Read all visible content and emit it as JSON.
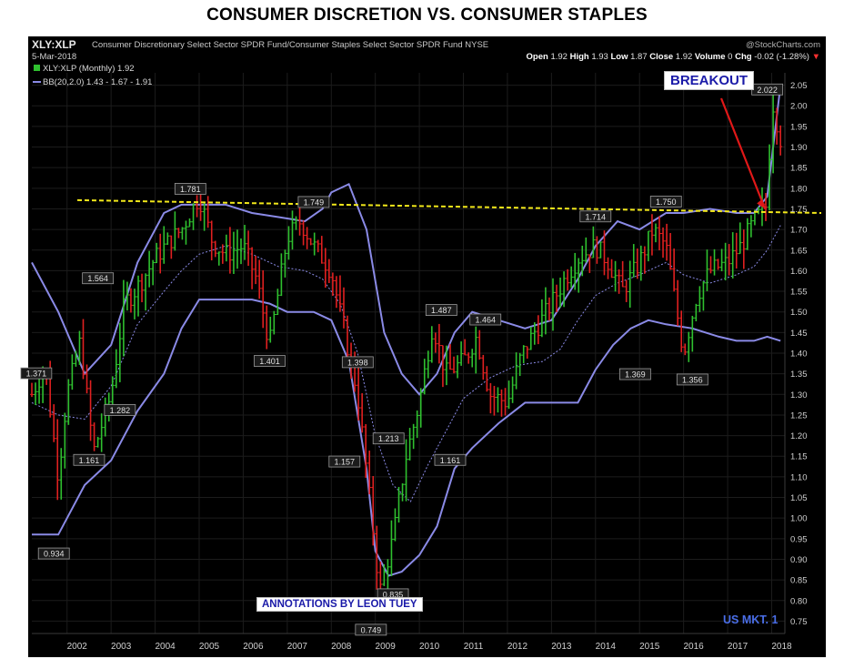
{
  "page": {
    "title": "CONSUMER DISCRETION VS. CONSUMER STAPLES"
  },
  "header": {
    "ticker": "XLY:XLP",
    "description": "Consumer Discretionary Select Sector SPDR Fund/Consumer Staples Select Sector SPDR Fund NYSE",
    "credit": "@StockCharts.com",
    "date": "5-Mar-2018",
    "open_label": "Open",
    "open": "1.92",
    "high_label": "High",
    "high": "1.93",
    "low_label": "Low",
    "low": "1.87",
    "close_label": "Close",
    "close": "1.92",
    "volume_label": "Volume",
    "volume": "0",
    "chg_label": "Chg",
    "chg": "-0.02 (-1.28%)"
  },
  "legend": {
    "series_main": "XLY:XLP (Monthly) 1.92",
    "series_bb": "BB(20,2.0) 1.43 - 1.67 - 1.91"
  },
  "annotations": {
    "breakout": "BREAKOUT",
    "credit": "ANNOTATIONS BY LEON TUEY",
    "market": "US MKT. 1"
  },
  "colors": {
    "background": "#000000",
    "up_bar": "#2fc02f",
    "down_bar": "#e02020",
    "bollinger": "#8a8ae6",
    "middle_band": "#8a8ae6",
    "resistance": "#f2e81a",
    "arrow": "#e01818",
    "annotation_text": "#1a1aa8",
    "market_text": "#4a6ee8"
  },
  "chart_data": {
    "type": "line",
    "title": "CONSUMER DISCRETION VS. CONSUMER STAPLES",
    "xlabel": "",
    "ylabel": "",
    "x_ticks": [
      "2002",
      "2003",
      "2004",
      "2005",
      "2006",
      "2007",
      "2008",
      "2009",
      "2010",
      "2011",
      "2012",
      "2013",
      "2014",
      "2015",
      "2016",
      "2017",
      "2018"
    ],
    "y_ticks": [
      "0.75",
      "0.80",
      "0.85",
      "0.90",
      "0.95",
      "1.00",
      "1.05",
      "1.10",
      "1.15",
      "1.20",
      "1.25",
      "1.30",
      "1.35",
      "1.40",
      "1.45",
      "1.50",
      "1.55",
      "1.60",
      "1.65",
      "1.70",
      "1.75",
      "1.80",
      "1.85",
      "1.90",
      "1.95",
      "2.00",
      "2.05"
    ],
    "ylim": [
      0.72,
      2.08
    ],
    "xlim": [
      2001.2,
      2018.3
    ],
    "grid": true,
    "y_axis_side": "right",
    "series": [
      {
        "name": "XLY:XLP (Monthly)",
        "style": "ohlc-bars",
        "x": [
          2001.2,
          2001.5,
          2001.8,
          2002.0,
          2002.3,
          2002.6,
          2003.0,
          2003.3,
          2003.6,
          2004.0,
          2004.3,
          2004.6,
          2005.0,
          2005.3,
          2005.6,
          2006.0,
          2006.3,
          2006.6,
          2007.0,
          2007.3,
          2007.6,
          2008.0,
          2008.3,
          2008.6,
          2008.9,
          2009.1,
          2009.4,
          2009.7,
          2010.0,
          2010.3,
          2010.6,
          2011.0,
          2011.3,
          2011.6,
          2012.0,
          2012.3,
          2012.6,
          2013.0,
          2013.3,
          2013.6,
          2014.0,
          2014.3,
          2014.6,
          2015.0,
          2015.3,
          2015.6,
          2016.0,
          2016.3,
          2016.6,
          2017.0,
          2017.3,
          2017.6,
          2017.9,
          2018.0,
          2018.2
        ],
        "y": [
          1.3,
          1.37,
          1.1,
          1.3,
          1.43,
          1.16,
          1.3,
          1.52,
          1.56,
          1.63,
          1.67,
          1.7,
          1.78,
          1.67,
          1.64,
          1.66,
          1.58,
          1.42,
          1.68,
          1.72,
          1.66,
          1.6,
          1.45,
          1.3,
          1.02,
          0.82,
          0.95,
          1.15,
          1.28,
          1.47,
          1.35,
          1.38,
          1.44,
          1.3,
          1.28,
          1.39,
          1.45,
          1.52,
          1.58,
          1.63,
          1.66,
          1.62,
          1.55,
          1.62,
          1.7,
          1.66,
          1.4,
          1.54,
          1.6,
          1.62,
          1.66,
          1.72,
          1.76,
          2.02,
          1.92
        ]
      },
      {
        "name": "BB(20,2.0)",
        "style": "upper-band",
        "x": [
          2001.2,
          2001.8,
          2002.4,
          2003.0,
          2003.6,
          2004.2,
          2004.6,
          2005.0,
          2005.6,
          2006.2,
          2006.8,
          2007.4,
          2007.8,
          2008.0,
          2008.4,
          2008.8,
          2009.2,
          2009.6,
          2010.0,
          2010.4,
          2010.8,
          2011.2,
          2011.8,
          2012.4,
          2013.0,
          2013.6,
          2014.0,
          2014.5,
          2015.0,
          2015.6,
          2016.0,
          2016.6,
          2017.2,
          2017.6,
          2017.9,
          2018.2
        ],
        "y": [
          1.62,
          1.5,
          1.35,
          1.42,
          1.62,
          1.74,
          1.76,
          1.76,
          1.76,
          1.74,
          1.73,
          1.72,
          1.75,
          1.79,
          1.81,
          1.7,
          1.45,
          1.35,
          1.3,
          1.35,
          1.45,
          1.5,
          1.48,
          1.46,
          1.48,
          1.58,
          1.66,
          1.72,
          1.7,
          1.74,
          1.74,
          1.75,
          1.74,
          1.74,
          1.78,
          2.05
        ]
      },
      {
        "name": "BB(20,2.0)",
        "style": "middle-band",
        "x": [
          2001.2,
          2001.8,
          2002.4,
          2003.0,
          2003.6,
          2004.2,
          2004.6,
          2005.0,
          2005.6,
          2006.2,
          2006.8,
          2007.4,
          2007.8,
          2008.2,
          2008.6,
          2009.0,
          2009.4,
          2009.8,
          2010.2,
          2010.6,
          2011.0,
          2011.6,
          2012.2,
          2012.8,
          2013.2,
          2013.6,
          2014.0,
          2014.5,
          2015.0,
          2015.6,
          2016.0,
          2016.6,
          2017.2,
          2017.6,
          2017.9,
          2018.2
        ],
        "y": [
          1.28,
          1.25,
          1.24,
          1.32,
          1.47,
          1.55,
          1.6,
          1.64,
          1.66,
          1.64,
          1.61,
          1.6,
          1.58,
          1.52,
          1.4,
          1.2,
          1.08,
          1.04,
          1.13,
          1.21,
          1.29,
          1.34,
          1.37,
          1.38,
          1.41,
          1.48,
          1.54,
          1.57,
          1.59,
          1.62,
          1.59,
          1.57,
          1.59,
          1.61,
          1.65,
          1.71
        ]
      },
      {
        "name": "BB(20,2.0)",
        "style": "lower-band",
        "x": [
          2001.2,
          2001.8,
          2002.4,
          2003.0,
          2003.6,
          2004.2,
          2004.6,
          2005.0,
          2005.6,
          2006.2,
          2006.6,
          2007.0,
          2007.6,
          2008.0,
          2008.4,
          2008.8,
          2009.0,
          2009.3,
          2009.6,
          2010.0,
          2010.4,
          2010.8,
          2011.2,
          2011.8,
          2012.4,
          2013.0,
          2013.6,
          2014.0,
          2014.4,
          2014.8,
          2015.2,
          2015.6,
          2016.2,
          2016.8,
          2017.2,
          2017.6,
          2017.9,
          2018.2
        ],
        "y": [
          0.96,
          0.96,
          1.08,
          1.14,
          1.26,
          1.35,
          1.46,
          1.53,
          1.53,
          1.53,
          1.52,
          1.5,
          1.5,
          1.48,
          1.38,
          1.12,
          0.92,
          0.86,
          0.87,
          0.91,
          0.98,
          1.12,
          1.17,
          1.23,
          1.28,
          1.28,
          1.28,
          1.36,
          1.42,
          1.46,
          1.48,
          1.47,
          1.46,
          1.44,
          1.43,
          1.43,
          1.44,
          1.43
        ]
      }
    ],
    "resistance_line": {
      "x": [
        2001.2,
        2018.3
      ],
      "y": [
        1.78,
        1.74
      ],
      "style": "dashed"
    },
    "point_labels": [
      {
        "x": 2001.3,
        "y": 1.371,
        "text": "1.371"
      },
      {
        "x": 2001.7,
        "y": 0.934,
        "text": "0.934"
      },
      {
        "x": 2002.7,
        "y": 1.564,
        "text": "1.564"
      },
      {
        "x": 2002.5,
        "y": 1.161,
        "text": "1.161"
      },
      {
        "x": 2003.2,
        "y": 1.282,
        "text": "1.282"
      },
      {
        "x": 2004.8,
        "y": 1.781,
        "text": "1.781"
      },
      {
        "x": 2006.6,
        "y": 1.401,
        "text": "1.401"
      },
      {
        "x": 2007.6,
        "y": 1.749,
        "text": "1.749"
      },
      {
        "x": 2008.6,
        "y": 1.398,
        "text": "1.398"
      },
      {
        "x": 2008.3,
        "y": 1.157,
        "text": "1.157"
      },
      {
        "x": 2009.3,
        "y": 1.213,
        "text": "1.213"
      },
      {
        "x": 2009.4,
        "y": 0.835,
        "text": "0.835"
      },
      {
        "x": 2008.9,
        "y": 0.749,
        "text": "0.749"
      },
      {
        "x": 2010.5,
        "y": 1.487,
        "text": "1.487"
      },
      {
        "x": 2010.7,
        "y": 1.161,
        "text": "1.161"
      },
      {
        "x": 2011.5,
        "y": 1.464,
        "text": "1.464"
      },
      {
        "x": 2014.0,
        "y": 1.714,
        "text": "1.714"
      },
      {
        "x": 2015.6,
        "y": 1.75,
        "text": "1.750"
      },
      {
        "x": 2014.9,
        "y": 1.369,
        "text": "1.369"
      },
      {
        "x": 2016.2,
        "y": 1.356,
        "text": "1.356"
      },
      {
        "x": 2017.9,
        "y": 2.022,
        "text": "2.022"
      }
    ]
  }
}
